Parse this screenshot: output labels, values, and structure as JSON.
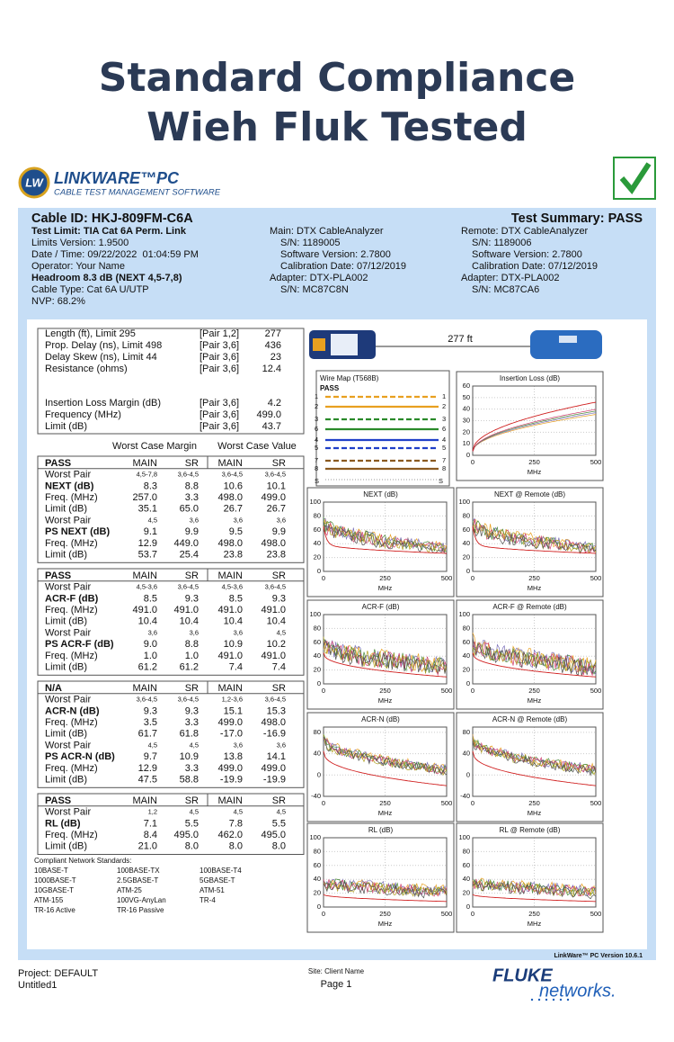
{
  "header": {
    "title_line1": "Standard Compliance",
    "title_line2": "Wieh Fluk Tested"
  },
  "logo": {
    "badge": "LW",
    "brand": "LINKWARE™PC",
    "tagline": "CABLE TEST MANAGEMENT SOFTWARE"
  },
  "summary": {
    "cable_id": "Cable ID: HKJ-809FM-C6A",
    "test_summary": "Test Summary: PASS",
    "left": [
      "Test Limit: TIA Cat 6A Perm. Link",
      "Limits Version: 1.9500",
      "Date / Time: 09/22/2022  01:04:59 PM",
      "Operator: Your Name",
      "Headroom 8.3 dB (NEXT 4,5-7,8)",
      "Cable Type: Cat 6A U/UTP",
      "NVP: 68.2%"
    ],
    "main": [
      "Main: DTX CableAnalyzer",
      "S/N: 1189005",
      "Software Version: 2.7800",
      "Calibration Date: 07/12/2019",
      "Adapter: DTX-PLA002",
      "S/N: MC87C8N"
    ],
    "remote": [
      "Remote: DTX CableAnalyzer",
      "S/N: 1189006",
      "Software Version: 2.7800",
      "Calibration Date: 07/12/2019",
      "Adapter: DTX-PLA002",
      "S/N: MC87CA6"
    ]
  },
  "length": {
    "rows": [
      [
        "Length (ft), Limit 295",
        "[Pair 1,2]",
        "277"
      ],
      [
        "Prop. Delay (ns), Limit 498",
        "[Pair 3,6]",
        "436"
      ],
      [
        "Delay Skew (ns), Limit 44",
        "[Pair 3,6]",
        "23"
      ],
      [
        "Resistance (ohms)",
        "[Pair 3,6]",
        "12.4"
      ],
      [
        "Insertion Loss Margin (dB)",
        "[Pair 3,6]",
        "4.2"
      ],
      [
        "Frequency (MHz)",
        "[Pair 3,6]",
        "499.0"
      ],
      [
        "Limit (dB)",
        "[Pair 3,6]",
        "43.7"
      ]
    ]
  },
  "tables": {
    "margin_heading": "Worst Case Margin",
    "value_heading": "Worst Case Value",
    "sections": [
      {
        "rows": [
          [
            "PASS",
            "MAIN",
            "SR",
            "MAIN",
            "SR"
          ],
          [
            "Worst Pair",
            "4,5-7,8",
            "3,6-4,5",
            "3,6-4,5",
            "3,6-4,5"
          ],
          [
            "NEXT (dB)",
            "8.3",
            "8.8",
            "10.6",
            "10.1"
          ],
          [
            "Freq. (MHz)",
            "257.0",
            "3.3",
            "498.0",
            "499.0"
          ],
          [
            "Limit (dB)",
            "35.1",
            "65.0",
            "26.7",
            "26.7"
          ],
          [
            "Worst Pair",
            "4,5",
            "3,6",
            "3,6",
            "3,6"
          ],
          [
            "PS NEXT (dB)",
            "9.1",
            "9.9",
            "9.5",
            "9.9"
          ],
          [
            "Freq. (MHz)",
            "12.9",
            "449.0",
            "498.0",
            "498.0"
          ],
          [
            "Limit (dB)",
            "53.7",
            "25.4",
            "23.8",
            "23.8"
          ]
        ]
      },
      {
        "rows": [
          [
            "PASS",
            "MAIN",
            "SR",
            "MAIN",
            "SR"
          ],
          [
            "Worst Pair",
            "4,5-3,6",
            "3,6-4,5",
            "4,5-3,6",
            "3,6-4,5"
          ],
          [
            "ACR-F (dB)",
            "8.5",
            "9.3",
            "8.5",
            "9.3"
          ],
          [
            "Freq. (MHz)",
            "491.0",
            "491.0",
            "491.0",
            "491.0"
          ],
          [
            "Limit (dB)",
            "10.4",
            "10.4",
            "10.4",
            "10.4"
          ],
          [
            "Worst Pair",
            "3,6",
            "3,6",
            "3,6",
            "4,5"
          ],
          [
            "PS ACR-F (dB)",
            "9.0",
            "8.8",
            "10.9",
            "10.2"
          ],
          [
            "Freq. (MHz)",
            "1.0",
            "1.0",
            "491.0",
            "491.0"
          ],
          [
            "Limit (dB)",
            "61.2",
            "61.2",
            "7.4",
            "7.4"
          ]
        ]
      },
      {
        "rows": [
          [
            "N/A",
            "MAIN",
            "SR",
            "MAIN",
            "SR"
          ],
          [
            "Worst Pair",
            "3,6-4,5",
            "3,6-4,5",
            "1,2-3,6",
            "3,6-4,5"
          ],
          [
            "ACR-N (dB)",
            "9.3",
            "9.3",
            "15.1",
            "15.3"
          ],
          [
            "Freq. (MHz)",
            "3.5",
            "3.3",
            "499.0",
            "498.0"
          ],
          [
            "Limit (dB)",
            "61.7",
            "61.8",
            "-17.0",
            "-16.9"
          ],
          [
            "Worst Pair",
            "4,5",
            "4,5",
            "3,6",
            "3,6"
          ],
          [
            "PS ACR-N (dB)",
            "9.7",
            "10.9",
            "13.8",
            "14.1"
          ],
          [
            "Freq. (MHz)",
            "12.9",
            "3.3",
            "499.0",
            "499.0"
          ],
          [
            "Limit (dB)",
            "47.5",
            "58.8",
            "-19.9",
            "-19.9"
          ]
        ]
      },
      {
        "rows": [
          [
            "PASS",
            "MAIN",
            "SR",
            "MAIN",
            "SR"
          ],
          [
            "Worst Pair",
            "1,2",
            "4,5",
            "4,5",
            "4,5"
          ],
          [
            "RL (dB)",
            "7.1",
            "5.5",
            "7.8",
            "5.5"
          ],
          [
            "Freq. (MHz)",
            "8.4",
            "495.0",
            "462.0",
            "495.0"
          ],
          [
            "Limit (dB)",
            "21.0",
            "8.0",
            "8.0",
            "8.0"
          ]
        ]
      }
    ]
  },
  "standards": {
    "heading": "Compliant Network Standards:",
    "columns": [
      [
        "10BASE-T",
        "1000BASE-T",
        "10GBASE-T",
        "ATM-155",
        "TR-16 Active"
      ],
      [
        "100BASE-TX",
        "2.5GBASE-T",
        "ATM-25",
        "100VG-AnyLan",
        "TR-16 Passive"
      ],
      [
        "100BASE-T4",
        "5GBASE-T",
        "ATM-51",
        "TR-4"
      ]
    ]
  },
  "link": {
    "length": "277 ft"
  },
  "wire_map": {
    "title": "Wire Map (T568B)",
    "status": "PASS",
    "left_pins": [
      "1",
      "2",
      "3",
      "6",
      "4",
      "5",
      "7",
      "8"
    ],
    "right_pins": [
      "1",
      "2",
      "3",
      "6",
      "4",
      "5",
      "7",
      "8"
    ],
    "shield_left": "S",
    "shield_right": "S"
  },
  "charts": [
    {
      "title": "Insertion Loss (dB)",
      "xlabel": "MHz",
      "xlim": [
        0,
        500
      ],
      "xticks": [
        0,
        250,
        500
      ],
      "ylim": [
        0,
        60
      ],
      "yticks": [
        0,
        10,
        20,
        30,
        40,
        50,
        60
      ]
    },
    {
      "title": "NEXT (dB)",
      "xlabel": "MHz",
      "xlim": [
        0,
        500
      ],
      "xticks": [
        0,
        250,
        500
      ],
      "ylim": [
        0,
        100
      ],
      "yticks": [
        0,
        20,
        40,
        60,
        80,
        100
      ]
    },
    {
      "title": "NEXT @ Remote (dB)",
      "xlabel": "MHz",
      "xlim": [
        0,
        500
      ],
      "xticks": [
        0,
        250,
        500
      ],
      "ylim": [
        0,
        100
      ],
      "yticks": [
        0,
        20,
        40,
        60,
        80,
        100
      ]
    },
    {
      "title": "ACR-F (dB)",
      "xlabel": "MHz",
      "xlim": [
        0,
        500
      ],
      "xticks": [
        0,
        250,
        500
      ],
      "ylim": [
        0,
        100
      ],
      "yticks": [
        0,
        20,
        40,
        60,
        80,
        100
      ]
    },
    {
      "title": "ACR-F @ Remote (dB)",
      "xlabel": "MHz",
      "xlim": [
        0,
        500
      ],
      "xticks": [
        0,
        250,
        500
      ],
      "ylim": [
        0,
        100
      ],
      "yticks": [
        0,
        20,
        40,
        60,
        80,
        100
      ]
    },
    {
      "title": "ACR-N (dB)",
      "xlabel": "MHz",
      "xlim": [
        0,
        500
      ],
      "xticks": [
        0,
        250,
        500
      ],
      "ylim": [
        -40,
        90
      ],
      "yticks": [
        -40,
        0,
        40,
        80
      ]
    },
    {
      "title": "ACR-N @ Remote (dB)",
      "xlabel": "MHz",
      "xlim": [
        0,
        500
      ],
      "xticks": [
        0,
        250,
        500
      ],
      "ylim": [
        -40,
        90
      ],
      "yticks": [
        -40,
        0,
        40,
        80
      ]
    },
    {
      "title": "RL (dB)",
      "xlabel": "MHz",
      "xlim": [
        0,
        500
      ],
      "xticks": [
        0,
        250,
        500
      ],
      "ylim": [
        0,
        100
      ],
      "yticks": [
        0,
        20,
        40,
        60,
        80,
        100
      ]
    },
    {
      "title": "RL @ Remote (dB)",
      "xlabel": "MHz",
      "xlim": [
        0,
        500
      ],
      "xticks": [
        0,
        250,
        500
      ],
      "ylim": [
        0,
        100
      ],
      "yticks": [
        0,
        20,
        40,
        60,
        80,
        100
      ]
    }
  ],
  "footer": {
    "version": "LinkWare™ PC Version 10.6.1",
    "project": "Project: DEFAULT",
    "file": "Untitled1",
    "site": "Site: Client Name",
    "page": "Page 1",
    "brand_top": "FLUKE",
    "brand_bottom": "networks."
  }
}
